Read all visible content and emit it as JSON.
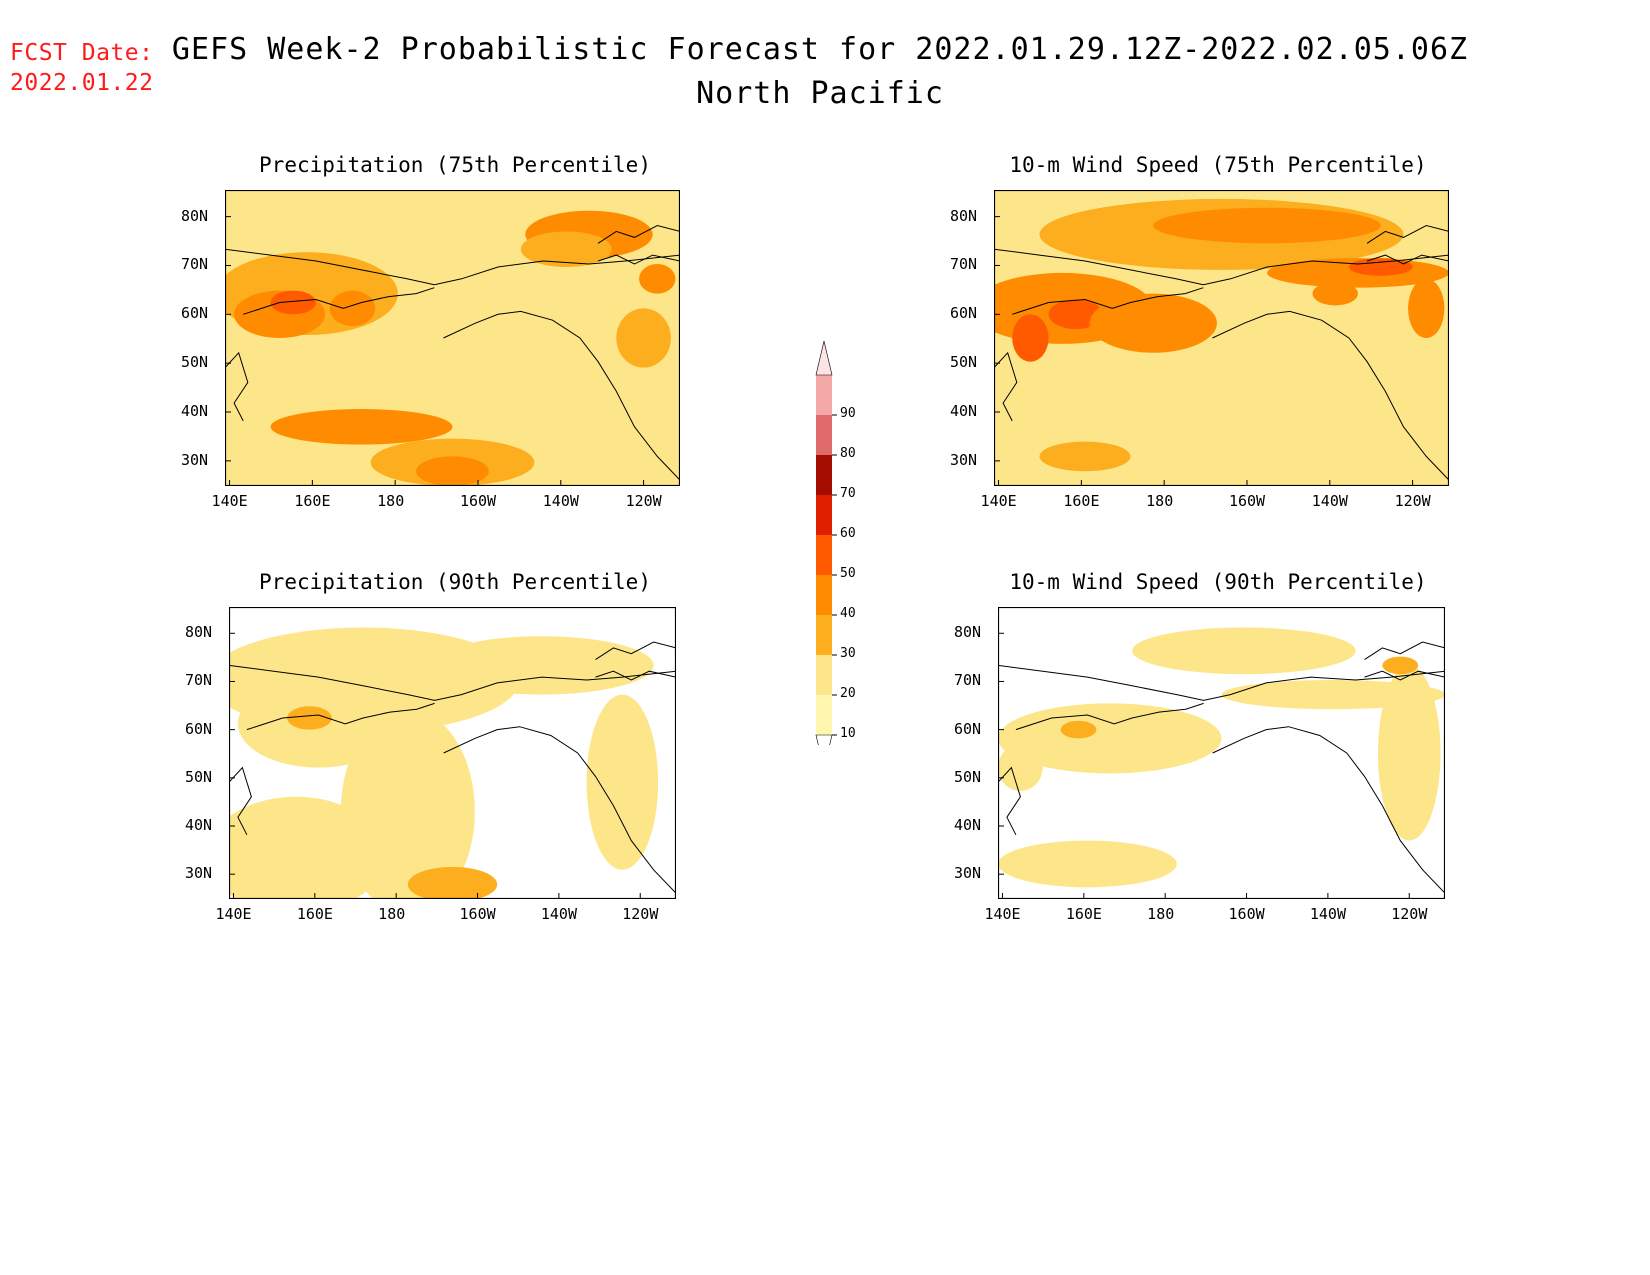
{
  "forecast_date": {
    "label": "FCST Date:",
    "value": "2022.01.22",
    "color": "#ff1a1a"
  },
  "header": {
    "title": "GEFS Week-2 Probabilistic Forecast for 2022.01.29.12Z-2022.02.05.06Z",
    "region": "North Pacific"
  },
  "axes": {
    "lat_labels": [
      "80N",
      "70N",
      "60N",
      "50N",
      "40N",
      "30N"
    ],
    "lon_labels": [
      "140E",
      "160E",
      "180",
      "160W",
      "140W",
      "120W"
    ]
  },
  "colorbar": {
    "levels": [
      "10",
      "20",
      "30",
      "40",
      "50",
      "60",
      "70",
      "80",
      "90"
    ],
    "colors": [
      "#fff7b0",
      "#fde68a",
      "#fcae1e",
      "#ff8c00",
      "#ff5a00",
      "#e01e00",
      "#a30d00",
      "#e06b6b",
      "#f4a8a8",
      "#fde3e3"
    ]
  },
  "panels": [
    {
      "id": "precip75",
      "title": "Precipitation (75th Percentile)",
      "base_level": 1,
      "heavy": 1.0
    },
    {
      "id": "wind75",
      "title": "10-m Wind Speed (75th Percentile)",
      "base_level": 1,
      "heavy": 1.2
    },
    {
      "id": "precip90",
      "title": "Precipitation (90th Percentile)",
      "base_level": 0,
      "heavy": 0.4
    },
    {
      "id": "wind90",
      "title": "10-m Wind Speed (90th Percentile)",
      "base_level": 0,
      "heavy": 0.35
    }
  ]
}
